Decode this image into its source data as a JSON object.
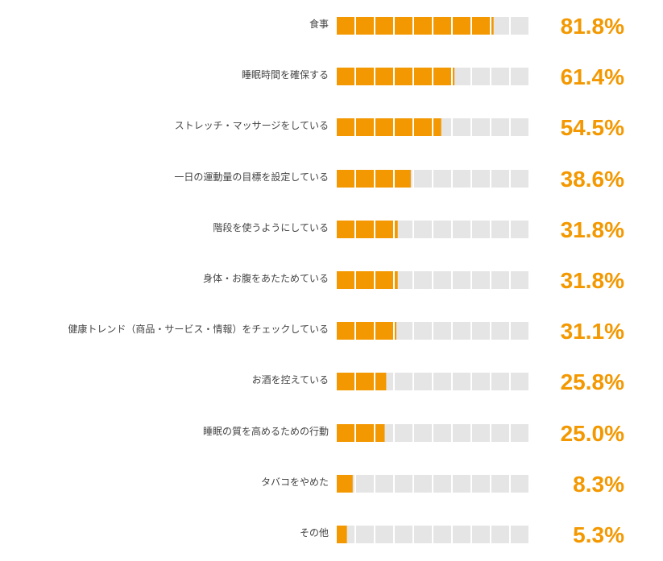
{
  "chart_data": {
    "type": "bar",
    "orientation": "horizontal",
    "segments_per_bar": 10,
    "categories": [
      "食事",
      "睡眠時間を確保する",
      "ストレッチ・マッサージをしている",
      "一日の運動量の目標を設定している",
      "階段を使うようにしている",
      "身体・お腹をあたためている",
      "健康トレンド（商品・サービス・情報）をチェックしている",
      "お酒を控えている",
      "睡眠の質を高めるための行動",
      "タバコをやめた",
      "その他"
    ],
    "values": [
      81.8,
      61.4,
      54.5,
      38.6,
      31.8,
      31.8,
      31.1,
      25.8,
      25.0,
      8.3,
      5.3
    ],
    "value_labels": [
      "81.8%",
      "61.4%",
      "54.5%",
      "38.6%",
      "31.8%",
      "31.8%",
      "31.1%",
      "25.8%",
      "25.0%",
      "8.3%",
      "5.3%"
    ],
    "xlim": [
      0,
      100
    ],
    "grid": false,
    "colors": {
      "fill": "#f39800",
      "track": "#e5e5e5",
      "value_text": "#f39800",
      "label_text": "#444444"
    }
  }
}
